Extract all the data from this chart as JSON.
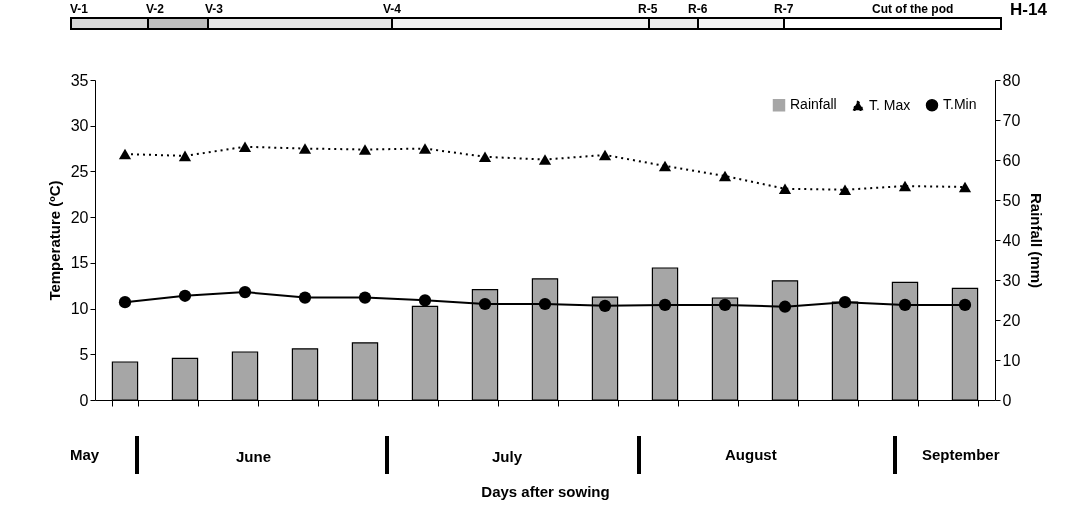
{
  "chart_data": {
    "type": "bar",
    "xlabel": "Days after sowing",
    "ylabel": "Temperature (ºC)",
    "y2label": "Rainfall (mm)",
    "categories": [
      null,
      null,
      null,
      null,
      null,
      null,
      null,
      null,
      null,
      null,
      null,
      null,
      null,
      null,
      null
    ],
    "series": [
      {
        "name": "Rainfall",
        "axis": "y2",
        "color": "#a6a6a6",
        "values": [
          9.5,
          10.4,
          12.0,
          12.8,
          14.3,
          23.4,
          27.6,
          30.3,
          25.7,
          33.0,
          25.5,
          29.8,
          24.5,
          29.4,
          27.9
        ]
      },
      {
        "name": "T. Max",
        "type": "line",
        "color": "#000000",
        "line_style": "dotted",
        "marker": "triangle",
        "values": [
          26.9,
          26.7,
          27.7,
          27.5,
          27.4,
          27.5,
          26.6,
          26.3,
          26.8,
          25.6,
          24.5,
          23.1,
          23.0,
          23.4,
          23.3
        ]
      },
      {
        "name": "T.Min",
        "type": "line",
        "color": "#000000",
        "line_style": "solid",
        "marker": "circle",
        "values": [
          10.7,
          11.4,
          11.8,
          11.2,
          11.2,
          10.9,
          10.5,
          10.5,
          10.3,
          10.4,
          10.4,
          10.2,
          10.7,
          10.4,
          10.4
        ]
      }
    ],
    "ylim": [
      0,
      35
    ],
    "yticks": [
      0,
      5,
      10,
      15,
      20,
      25,
      30,
      35
    ],
    "y2lim": [
      0,
      80
    ],
    "y2ticks": [
      0,
      10,
      20,
      30,
      40,
      50,
      60,
      70,
      80
    ],
    "grid": false,
    "legend": "top right",
    "annotations": [
      "V-1",
      "V-2",
      "V-3",
      "V-4",
      "R-5",
      "R-6",
      "R-7",
      "Cut of the pod",
      "H-14",
      "May",
      "June",
      "July",
      "August",
      "September"
    ]
  }
}
